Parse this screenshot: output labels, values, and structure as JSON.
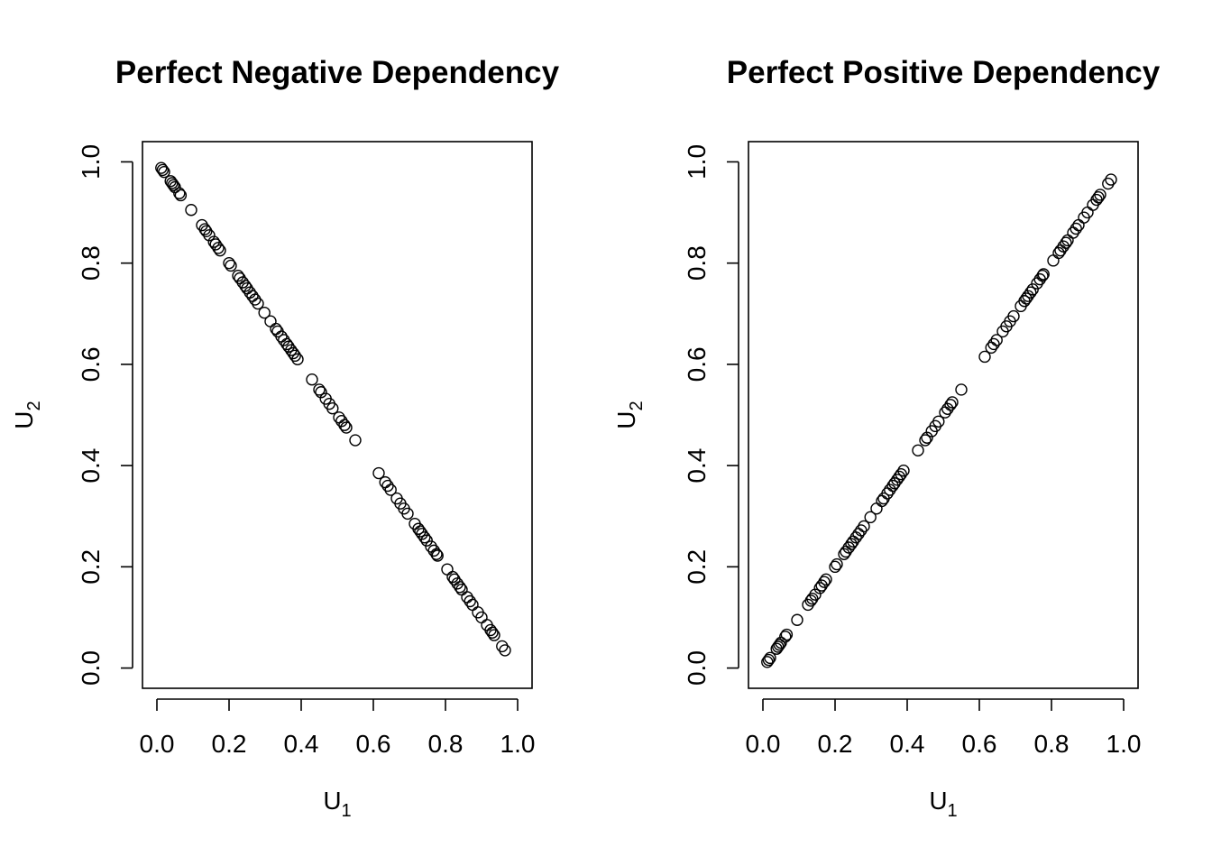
{
  "chart_data": [
    {
      "type": "scatter",
      "title": "Perfect Negative Dependency",
      "xlabel": {
        "base": "U",
        "sub": "1"
      },
      "ylabel": {
        "base": "U",
        "sub": "2"
      },
      "xlim": [
        0,
        1
      ],
      "ylim": [
        0,
        1
      ],
      "xticks": [
        "0.0",
        "0.2",
        "0.4",
        "0.6",
        "0.8",
        "1.0"
      ],
      "yticks": [
        "0.0",
        "0.2",
        "0.4",
        "0.6",
        "0.8",
        "1.0"
      ],
      "grid": false,
      "x": [
        0.012,
        0.016,
        0.02,
        0.038,
        0.042,
        0.046,
        0.05,
        0.062,
        0.066,
        0.095,
        0.125,
        0.133,
        0.137,
        0.145,
        0.158,
        0.163,
        0.17,
        0.175,
        0.2,
        0.205,
        0.225,
        0.23,
        0.238,
        0.245,
        0.25,
        0.258,
        0.265,
        0.272,
        0.28,
        0.298,
        0.315,
        0.33,
        0.335,
        0.345,
        0.352,
        0.36,
        0.365,
        0.372,
        0.378,
        0.383,
        0.39,
        0.43,
        0.45,
        0.455,
        0.468,
        0.478,
        0.487,
        0.505,
        0.512,
        0.52,
        0.525,
        0.55,
        0.615,
        0.633,
        0.64,
        0.648,
        0.665,
        0.675,
        0.685,
        0.695,
        0.715,
        0.725,
        0.73,
        0.735,
        0.742,
        0.748,
        0.76,
        0.768,
        0.775,
        0.778,
        0.805,
        0.82,
        0.825,
        0.833,
        0.84,
        0.845,
        0.86,
        0.868,
        0.875,
        0.89,
        0.9,
        0.915,
        0.925,
        0.93,
        0.935,
        0.957,
        0.965
      ],
      "y": [
        0.988,
        0.984,
        0.98,
        0.962,
        0.958,
        0.954,
        0.95,
        0.938,
        0.934,
        0.905,
        0.875,
        0.867,
        0.863,
        0.855,
        0.842,
        0.837,
        0.83,
        0.825,
        0.8,
        0.795,
        0.775,
        0.77,
        0.762,
        0.755,
        0.75,
        0.742,
        0.735,
        0.728,
        0.72,
        0.702,
        0.685,
        0.67,
        0.665,
        0.655,
        0.648,
        0.64,
        0.635,
        0.628,
        0.622,
        0.617,
        0.61,
        0.57,
        0.55,
        0.545,
        0.532,
        0.522,
        0.513,
        0.495,
        0.488,
        0.48,
        0.475,
        0.45,
        0.385,
        0.367,
        0.36,
        0.352,
        0.335,
        0.325,
        0.315,
        0.305,
        0.285,
        0.275,
        0.27,
        0.265,
        0.258,
        0.252,
        0.24,
        0.232,
        0.225,
        0.222,
        0.195,
        0.18,
        0.175,
        0.167,
        0.16,
        0.155,
        0.14,
        0.132,
        0.125,
        0.11,
        0.1,
        0.085,
        0.075,
        0.07,
        0.065,
        0.043,
        0.035
      ]
    },
    {
      "type": "scatter",
      "title": "Perfect Positive Dependency",
      "xlabel": {
        "base": "U",
        "sub": "1"
      },
      "ylabel": {
        "base": "U",
        "sub": "2"
      },
      "xlim": [
        0,
        1
      ],
      "ylim": [
        0,
        1
      ],
      "xticks": [
        "0.0",
        "0.2",
        "0.4",
        "0.6",
        "0.8",
        "1.0"
      ],
      "yticks": [
        "0.0",
        "0.2",
        "0.4",
        "0.6",
        "0.8",
        "1.0"
      ],
      "grid": false,
      "x": [
        0.012,
        0.016,
        0.02,
        0.038,
        0.042,
        0.046,
        0.05,
        0.062,
        0.066,
        0.095,
        0.125,
        0.133,
        0.137,
        0.145,
        0.158,
        0.163,
        0.17,
        0.175,
        0.2,
        0.205,
        0.225,
        0.23,
        0.238,
        0.245,
        0.25,
        0.258,
        0.265,
        0.272,
        0.28,
        0.298,
        0.315,
        0.33,
        0.335,
        0.345,
        0.352,
        0.36,
        0.365,
        0.372,
        0.378,
        0.383,
        0.39,
        0.43,
        0.45,
        0.455,
        0.468,
        0.478,
        0.487,
        0.505,
        0.512,
        0.52,
        0.525,
        0.55,
        0.615,
        0.633,
        0.64,
        0.648,
        0.665,
        0.675,
        0.685,
        0.695,
        0.715,
        0.725,
        0.73,
        0.735,
        0.742,
        0.748,
        0.76,
        0.768,
        0.775,
        0.778,
        0.805,
        0.82,
        0.825,
        0.833,
        0.84,
        0.845,
        0.86,
        0.868,
        0.875,
        0.89,
        0.9,
        0.915,
        0.925,
        0.93,
        0.935,
        0.957,
        0.965
      ],
      "y": [
        0.012,
        0.016,
        0.02,
        0.038,
        0.042,
        0.046,
        0.05,
        0.062,
        0.066,
        0.095,
        0.125,
        0.133,
        0.137,
        0.145,
        0.158,
        0.163,
        0.17,
        0.175,
        0.2,
        0.205,
        0.225,
        0.23,
        0.238,
        0.245,
        0.25,
        0.258,
        0.265,
        0.272,
        0.28,
        0.298,
        0.315,
        0.33,
        0.335,
        0.345,
        0.352,
        0.36,
        0.365,
        0.372,
        0.378,
        0.383,
        0.39,
        0.43,
        0.45,
        0.455,
        0.468,
        0.478,
        0.487,
        0.505,
        0.512,
        0.52,
        0.525,
        0.55,
        0.615,
        0.633,
        0.64,
        0.648,
        0.665,
        0.675,
        0.685,
        0.695,
        0.715,
        0.725,
        0.73,
        0.735,
        0.742,
        0.748,
        0.76,
        0.768,
        0.775,
        0.778,
        0.805,
        0.82,
        0.825,
        0.833,
        0.84,
        0.845,
        0.86,
        0.868,
        0.875,
        0.89,
        0.9,
        0.915,
        0.925,
        0.93,
        0.935,
        0.957,
        0.965
      ]
    }
  ]
}
